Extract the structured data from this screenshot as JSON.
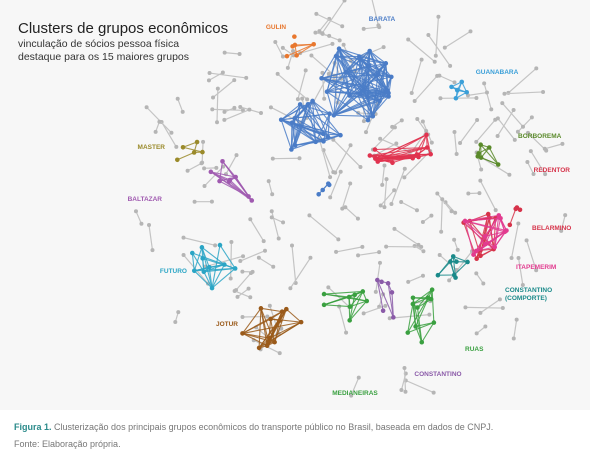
{
  "figure": {
    "title": "Clusters de grupos econômicos",
    "subtitle": [
      "vinculação de sócios pessoa física",
      "destaque para os 15 maiores grupos"
    ],
    "clusters": [
      {
        "label": [
          "GULIN"
        ]
      },
      {
        "label": [
          "BARATA"
        ]
      },
      {
        "label": [
          "GUANABARA"
        ]
      },
      {
        "label": [
          "BORBOREMA"
        ]
      },
      {
        "label": [
          "REDENTOR"
        ]
      },
      {
        "label": [
          "MASTER"
        ]
      },
      {
        "label": [
          "BALTAZAR"
        ]
      },
      {
        "label": [
          "BELARMINO"
        ]
      },
      {
        "label": [
          "FUTURO"
        ]
      },
      {
        "label": [
          "ITAPEMERIM"
        ]
      },
      {
        "label": [
          "CONSTANTINO",
          "(COMPORTE)"
        ]
      },
      {
        "label": [
          "JOTUR"
        ]
      },
      {
        "label": [
          "RUAS"
        ]
      },
      {
        "label": [
          "CONSTANTINO"
        ]
      },
      {
        "label": [
          "MEDIANEIRAS"
        ]
      }
    ],
    "caption": {
      "label": "Figura 1.",
      "text": "Clusterização dos principais grupos econômicos do transporte público no Brasil, baseada em dados de CNPJ.",
      "source": "Fonte: Elaboração própria."
    }
  }
}
